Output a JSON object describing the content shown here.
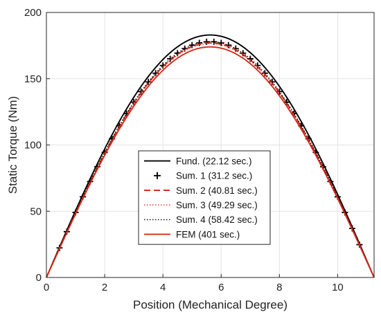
{
  "chart_data": {
    "type": "line",
    "xlabel": "Position (Mechanical Degree)",
    "ylabel": "Static Torque (Nm)",
    "xlim": [
      0,
      11.25
    ],
    "ylim": [
      0,
      200
    ],
    "xticks": [
      0,
      2,
      4,
      6,
      8,
      10
    ],
    "yticks": [
      0,
      50,
      100,
      150,
      200
    ],
    "grid": true,
    "legend_position": "center",
    "peak_position": 5.625,
    "series": [
      {
        "name": "Fund. (22.12 sec.)",
        "peak": 183,
        "color": "#000000",
        "style": "solid",
        "marker": "none"
      },
      {
        "name": "Sum. 1 (31.2 sec.)",
        "peak": 178,
        "color": "#000000",
        "style": "none",
        "marker": "plus",
        "marker_x": [
          0.45,
          0.7,
          1.0,
          1.25,
          1.5,
          1.75,
          2.0,
          2.25,
          2.5,
          2.75,
          3.0,
          3.25,
          3.5,
          3.75,
          4.0,
          4.25,
          4.5,
          4.75,
          5.0,
          5.25,
          5.5,
          5.75,
          6.0,
          6.25,
          6.5,
          6.75,
          7.0,
          7.25,
          7.5,
          7.75,
          8.0,
          8.25,
          8.5,
          8.75,
          9.0,
          9.25,
          9.5,
          9.75,
          10.0,
          10.25,
          10.5,
          10.75
        ]
      },
      {
        "name": "Sum. 2 (40.81 sec.)",
        "peak": 177,
        "color": "#d62a1b",
        "style": "dashed",
        "marker": "none"
      },
      {
        "name": "Sum. 3 (49.29 sec.)",
        "peak": 176.5,
        "color": "#d62a1b",
        "style": "dotted",
        "marker": "none"
      },
      {
        "name": "Sum. 4 (58.42 sec.)",
        "peak": 178,
        "color": "#000000",
        "style": "dotted",
        "marker": "none"
      },
      {
        "name": "FEM (401 sec.)",
        "peak": 174,
        "color": "#d62a1b",
        "style": "solid",
        "marker": "none"
      }
    ]
  }
}
